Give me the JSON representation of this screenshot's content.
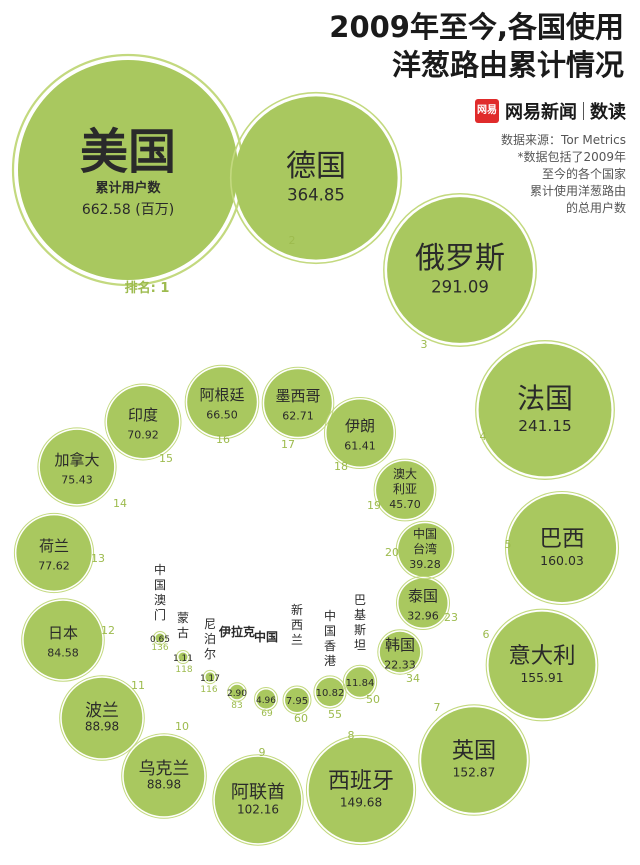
{
  "title_lines": [
    "2009年至今,各国使用",
    "洋葱路由累计情况"
  ],
  "brand": {
    "logo_text": "网易",
    "name": "网易新闻",
    "sub": "数读"
  },
  "source": {
    "label": "数据来源：Tor Metrics",
    "note_lines": [
      "*数据包括了2009年",
      "至今的各个国家",
      "累计使用洋葱路由",
      "的总用户数"
    ]
  },
  "first_item_labels": {
    "metric": "累计用户数",
    "unit": "(百万)",
    "rank_prefix": "排名: "
  },
  "colors": {
    "bubble_fill": "#a9c85f",
    "bubble_ring": "#c3d97f",
    "rank_text": "#9dbb4e",
    "text_dark": "#2a2a2a"
  },
  "chart_data": {
    "type": "bubble",
    "metric": "累计用户数",
    "unit": "百万",
    "items": [
      {
        "rank": 1,
        "country": "美国",
        "value": "662.58"
      },
      {
        "rank": 2,
        "country": "德国",
        "value": "364.85"
      },
      {
        "rank": 3,
        "country": "俄罗斯",
        "value": "291.09"
      },
      {
        "rank": 4,
        "country": "法国",
        "value": "241.15"
      },
      {
        "rank": 5,
        "country": "巴西",
        "value": "160.03"
      },
      {
        "rank": 6,
        "country": "意大利",
        "value": "155.91"
      },
      {
        "rank": 7,
        "country": "英国",
        "value": "152.87"
      },
      {
        "rank": 8,
        "country": "西班牙",
        "value": "149.68"
      },
      {
        "rank": 9,
        "country": "阿联酋",
        "value": "102.16"
      },
      {
        "rank": 10,
        "country": "乌克兰",
        "value": "88.98"
      },
      {
        "rank": 11,
        "country": "波兰",
        "value": "88.98"
      },
      {
        "rank": 12,
        "country": "日本",
        "value": "84.58"
      },
      {
        "rank": 13,
        "country": "荷兰",
        "value": "77.62"
      },
      {
        "rank": 14,
        "country": "加拿大",
        "value": "75.43"
      },
      {
        "rank": 15,
        "country": "印度",
        "value": "70.92"
      },
      {
        "rank": 16,
        "country": "阿根廷",
        "value": "66.50"
      },
      {
        "rank": 17,
        "country": "墨西哥",
        "value": "62.71"
      },
      {
        "rank": 18,
        "country": "伊朗",
        "value": "61.41"
      },
      {
        "rank": 19,
        "country": "澳大利亚",
        "value": "45.70"
      },
      {
        "rank": 20,
        "country": "中国台湾",
        "value": "39.28"
      },
      {
        "rank": 23,
        "country": "泰国",
        "value": "32.96"
      },
      {
        "rank": 34,
        "country": "韩国",
        "value": "22.33"
      },
      {
        "rank": 50,
        "country": "巴基斯坦",
        "value": "11.84"
      },
      {
        "rank": 55,
        "country": "中国香港",
        "value": "10.82"
      },
      {
        "rank": 60,
        "country": "新西兰",
        "value": "7.95"
      },
      {
        "rank": 69,
        "country": "中国",
        "value": "4.96"
      },
      {
        "rank": 83,
        "country": "伊拉克",
        "value": "2.90"
      },
      {
        "rank": 116,
        "country": "尼泊尔",
        "value": "1.17"
      },
      {
        "rank": 118,
        "country": "蒙古",
        "value": "1.11"
      },
      {
        "rank": 136,
        "country": "中国澳门",
        "value": "0.65"
      }
    ]
  }
}
